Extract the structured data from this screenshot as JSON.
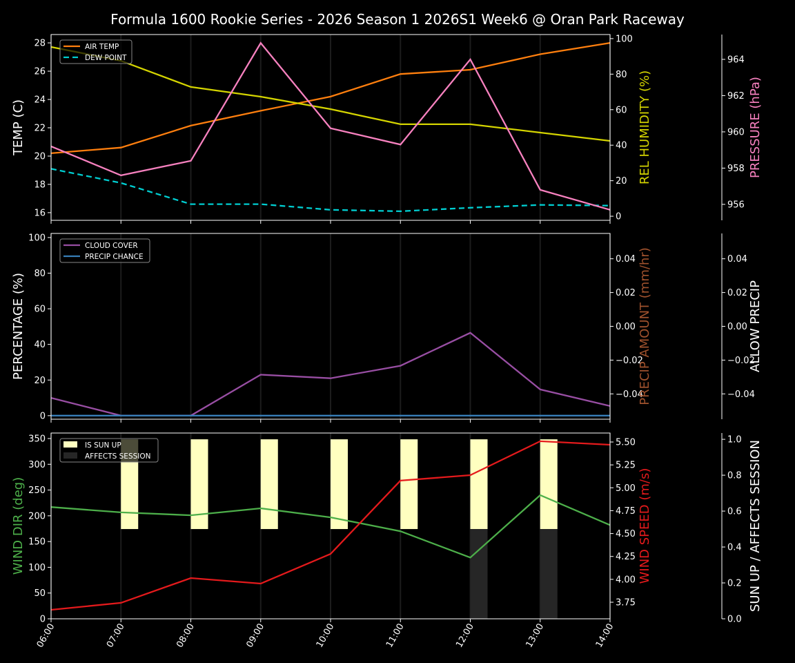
{
  "title": "Formula 1600 Rookie Series - 2026 Season 1 2026S1 Week6 @ Oran Park Raceway",
  "chart_data": [
    {
      "type": "line",
      "x": [
        "06:00",
        "07:00",
        "08:00",
        "09:00",
        "10:00",
        "11:00",
        "12:00",
        "13:00",
        "14:00"
      ],
      "grid": "vertical",
      "legend_placement": "top-left",
      "axes": {
        "left": {
          "label": "TEMP (C)",
          "color": "#ffffff",
          "ylim": [
            15.46,
            28.59
          ],
          "ticks": [
            16,
            18,
            20,
            22,
            24,
            26,
            28
          ],
          "tick_labels": [
            "16",
            "18",
            "20",
            "22",
            "24",
            "26",
            "28"
          ]
        },
        "right1": {
          "label": "REL HUMIDITY (%)",
          "color": "#d4d400",
          "ylim": [
            -2.3,
            102.3
          ],
          "ticks": [
            0,
            20,
            40,
            60,
            80,
            100
          ],
          "tick_labels": [
            "0",
            "20",
            "40",
            "60",
            "80",
            "100"
          ]
        },
        "right2": {
          "label": "PRESSURE (hPa)",
          "color": "#f781bf",
          "ylim": [
            955.12,
            965.37
          ],
          "ticks": [
            956,
            958,
            960,
            962,
            964
          ],
          "tick_labels": [
            "956",
            "958",
            "960",
            "962",
            "964"
          ]
        }
      },
      "series": [
        {
          "name": "AIR TEMP",
          "axis": "left",
          "color": "#ff7f0e",
          "style": "solid",
          "values": [
            20.2,
            20.6,
            22.15,
            23.2,
            24.2,
            25.8,
            26.1,
            27.2,
            28.0
          ]
        },
        {
          "name": "DEW POINT",
          "axis": "left",
          "color": "#00ced1",
          "style": "dashed",
          "values": [
            19.1,
            18.1,
            16.6,
            16.6,
            16.2,
            16.1,
            16.35,
            16.55,
            16.5
          ]
        },
        {
          "axis": "right1",
          "color": "#d4d400",
          "style": "solid",
          "values": [
            95.3,
            87.5,
            72.8,
            67.3,
            60.3,
            51.8,
            51.8,
            47.1,
            42.4
          ]
        },
        {
          "axis": "right2",
          "color": "#f781bf",
          "style": "solid",
          "values": [
            959.2,
            957.6,
            958.4,
            964.9,
            960.2,
            959.3,
            964.0,
            956.8,
            955.7
          ]
        }
      ]
    },
    {
      "type": "line",
      "x": [
        "06:00",
        "07:00",
        "08:00",
        "09:00",
        "10:00",
        "11:00",
        "12:00",
        "13:00",
        "14:00"
      ],
      "grid": "vertical",
      "legend_placement": "top-left",
      "axes": {
        "left": {
          "label": "PERCENTAGE (%)",
          "color": "#ffffff",
          "ylim": [
            -2,
            102.3
          ],
          "ticks": [
            0,
            20,
            40,
            60,
            80,
            100
          ],
          "tick_labels": [
            "0",
            "20",
            "40",
            "60",
            "80",
            "100"
          ]
        },
        "right1": {
          "label": "PRECIP AMOUNT (mm/hr)",
          "color": "#a0522d",
          "ylim": [
            -0.055,
            0.055
          ],
          "ticks": [
            -0.04,
            -0.02,
            0,
            0.02,
            0.04
          ],
          "tick_labels": [
            "−0.04",
            "−0.02",
            "0.00",
            "0.02",
            "0.04"
          ]
        },
        "right2": {
          "label": "ALLOW PRECIP",
          "color": "#ffffff",
          "ylim": [
            -0.055,
            0.055
          ],
          "ticks": [
            -0.04,
            -0.02,
            0,
            0.02,
            0.04
          ],
          "tick_labels": [
            "−0.04",
            "−0.02",
            "0.00",
            "0.02",
            "0.04"
          ]
        }
      },
      "series": [
        {
          "name": "CLOUD COVER",
          "axis": "left",
          "color": "#984ea3",
          "style": "solid",
          "values": [
            10,
            0,
            0,
            23,
            21,
            28,
            46.5,
            14.7,
            5.4
          ]
        },
        {
          "name": "PRECIP CHANCE",
          "axis": "left",
          "color": "#377eb8",
          "style": "solid",
          "values": [
            0,
            0,
            0,
            0,
            0,
            0,
            0,
            0,
            0
          ]
        }
      ]
    },
    {
      "type": "line",
      "x": [
        "06:00",
        "07:00",
        "08:00",
        "09:00",
        "10:00",
        "11:00",
        "12:00",
        "13:00",
        "14:00"
      ],
      "grid": "vertical",
      "legend_placement": "top-left",
      "axes": {
        "left": {
          "label": "WIND DIR (deg)",
          "color": "#4daf4a",
          "ylim": [
            0,
            360.7
          ],
          "ticks": [
            0,
            50,
            100,
            150,
            200,
            250,
            300,
            350
          ],
          "tick_labels": [
            "0",
            "50",
            "100",
            "150",
            "200",
            "250",
            "300",
            "350"
          ]
        },
        "right1": {
          "label": "WIND SPEED (m/s)",
          "color": "#e41a1c",
          "ylim": [
            3.569,
            5.598
          ],
          "ticks": [
            3.75,
            4.0,
            4.25,
            4.5,
            4.75,
            5.0,
            5.25,
            5.5
          ],
          "tick_labels": [
            "3.75",
            "4.00",
            "4.25",
            "4.50",
            "4.75",
            "5.00",
            "5.25",
            "5.50"
          ]
        },
        "right2": {
          "label": "SUN UP / AFFECTS SESSION",
          "color": "#ffffff",
          "ylim": [
            0,
            1.035
          ],
          "ticks": [
            0,
            0.2,
            0.4,
            0.6,
            0.8,
            1.0
          ],
          "tick_labels": [
            "0.0",
            "0.2",
            "0.4",
            "0.6",
            "0.8",
            "1.0"
          ]
        }
      },
      "bars": [
        {
          "name": "IS SUN UP",
          "axis": "right2",
          "color": "#ffffc0",
          "values": [
            0,
            1,
            1,
            1,
            1,
            1,
            1,
            1,
            0
          ]
        },
        {
          "name": "AFFECTS SESSION",
          "axis": "right2",
          "color": "#262626",
          "values": [
            0,
            0,
            0,
            0,
            0,
            0,
            1,
            1,
            0
          ]
        }
      ],
      "series": [
        {
          "axis": "left",
          "color": "#4daf4a",
          "style": "solid",
          "values": [
            217,
            206.6,
            201,
            214.5,
            197,
            170,
            119,
            240,
            182
          ]
        },
        {
          "axis": "right1",
          "color": "#e41a1c",
          "style": "solid",
          "values": [
            3.667,
            3.743,
            4.014,
            3.954,
            4.278,
            5.078,
            5.138,
            5.508,
            5.47
          ]
        }
      ]
    }
  ]
}
